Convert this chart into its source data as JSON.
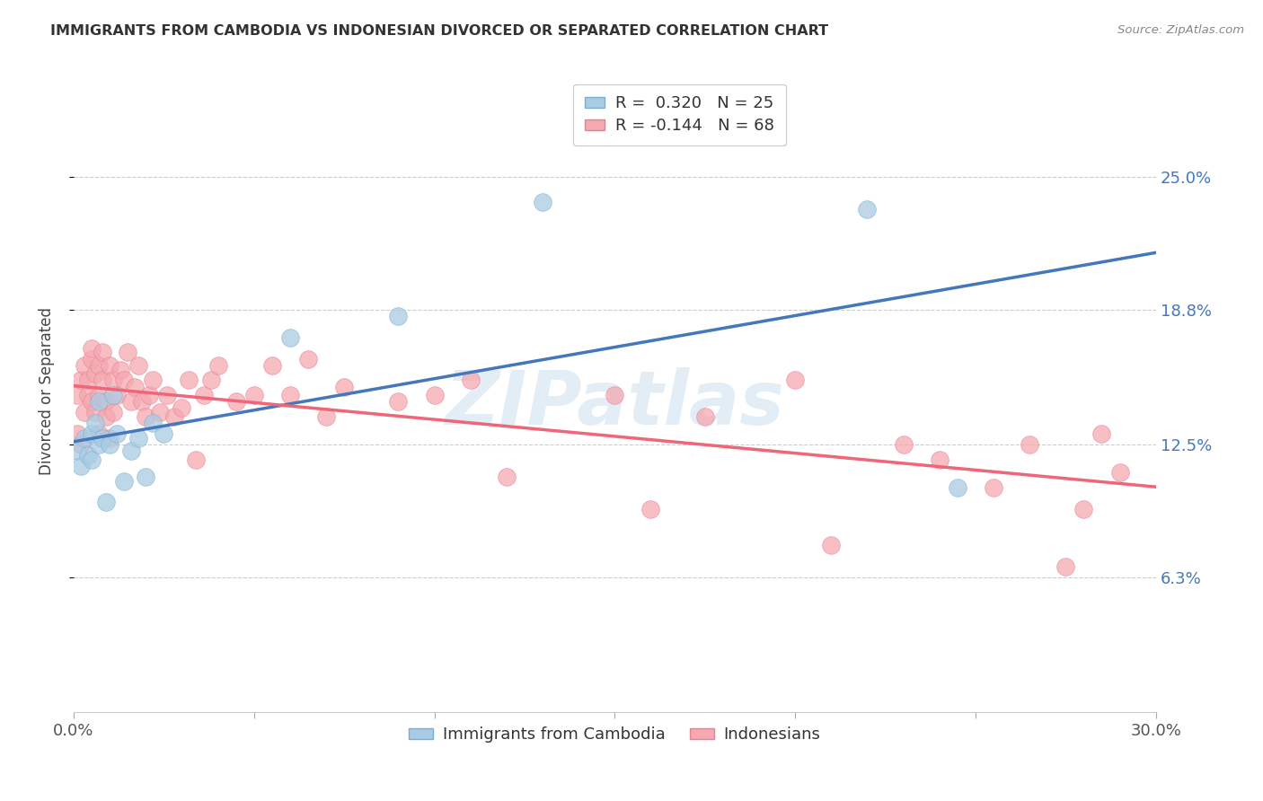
{
  "title": "IMMIGRANTS FROM CAMBODIA VS INDONESIAN DIVORCED OR SEPARATED CORRELATION CHART",
  "source": "Source: ZipAtlas.com",
  "ylabel": "Divorced or Separated",
  "xlim": [
    0.0,
    0.3
  ],
  "ylim": [
    0.0,
    0.3
  ],
  "xtick_positions": [
    0.0,
    0.05,
    0.1,
    0.15,
    0.2,
    0.25,
    0.3
  ],
  "xtick_labels": [
    "0.0%",
    "",
    "",
    "",
    "",
    "",
    "30.0%"
  ],
  "ytick_positions": [
    0.063,
    0.125,
    0.188,
    0.25
  ],
  "ytick_labels": [
    "6.3%",
    "12.5%",
    "18.8%",
    "25.0%"
  ],
  "watermark": "ZIPatlas",
  "legend": {
    "series1_label": "Immigrants from Cambodia",
    "series1_R": "0.320",
    "series1_N": "25",
    "series2_label": "Indonesians",
    "series2_R": "-0.144",
    "series2_N": "68"
  },
  "series1_color": "#a8cce4",
  "series2_color": "#f5a8b0",
  "line1_color": "#4477bb",
  "line2_color": "#ee6677",
  "cambodia_x": [
    0.001,
    0.002,
    0.003,
    0.004,
    0.005,
    0.005,
    0.006,
    0.007,
    0.007,
    0.008,
    0.009,
    0.01,
    0.011,
    0.012,
    0.014,
    0.016,
    0.018,
    0.02,
    0.022,
    0.025,
    0.06,
    0.09,
    0.13,
    0.22,
    0.245
  ],
  "cambodia_y": [
    0.122,
    0.115,
    0.128,
    0.12,
    0.13,
    0.118,
    0.135,
    0.125,
    0.145,
    0.128,
    0.098,
    0.125,
    0.148,
    0.13,
    0.108,
    0.122,
    0.128,
    0.11,
    0.135,
    0.13,
    0.175,
    0.185,
    0.238,
    0.235,
    0.105
  ],
  "indonesian_x": [
    0.001,
    0.001,
    0.002,
    0.002,
    0.003,
    0.003,
    0.004,
    0.004,
    0.005,
    0.005,
    0.005,
    0.006,
    0.006,
    0.007,
    0.007,
    0.007,
    0.008,
    0.008,
    0.009,
    0.009,
    0.01,
    0.01,
    0.011,
    0.011,
    0.012,
    0.013,
    0.014,
    0.015,
    0.016,
    0.017,
    0.018,
    0.019,
    0.02,
    0.021,
    0.022,
    0.024,
    0.026,
    0.028,
    0.03,
    0.032,
    0.034,
    0.036,
    0.038,
    0.04,
    0.045,
    0.05,
    0.055,
    0.06,
    0.065,
    0.07,
    0.075,
    0.09,
    0.1,
    0.11,
    0.12,
    0.15,
    0.16,
    0.175,
    0.2,
    0.21,
    0.23,
    0.24,
    0.255,
    0.265,
    0.275,
    0.28,
    0.285,
    0.29
  ],
  "indonesian_y": [
    0.13,
    0.148,
    0.125,
    0.155,
    0.162,
    0.14,
    0.148,
    0.155,
    0.165,
    0.145,
    0.17,
    0.158,
    0.14,
    0.162,
    0.148,
    0.13,
    0.155,
    0.168,
    0.145,
    0.138,
    0.162,
    0.128,
    0.155,
    0.14,
    0.148,
    0.16,
    0.155,
    0.168,
    0.145,
    0.152,
    0.162,
    0.145,
    0.138,
    0.148,
    0.155,
    0.14,
    0.148,
    0.138,
    0.142,
    0.155,
    0.118,
    0.148,
    0.155,
    0.162,
    0.145,
    0.148,
    0.162,
    0.148,
    0.165,
    0.138,
    0.152,
    0.145,
    0.148,
    0.155,
    0.11,
    0.148,
    0.095,
    0.138,
    0.155,
    0.078,
    0.125,
    0.118,
    0.105,
    0.125,
    0.068,
    0.095,
    0.13,
    0.112
  ]
}
